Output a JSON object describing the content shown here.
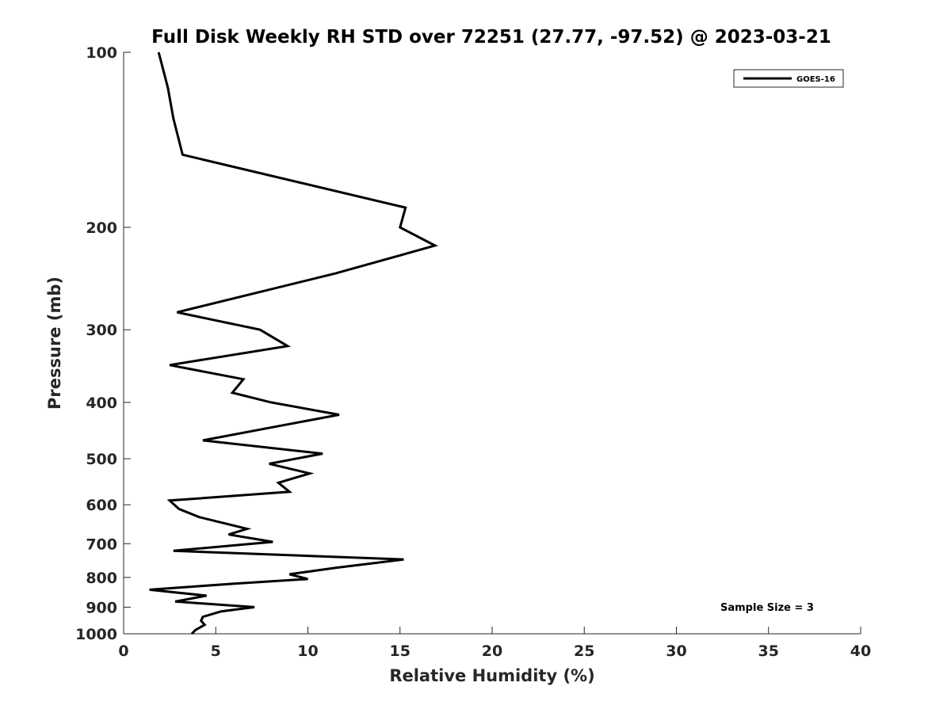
{
  "chart_data": {
    "type": "line",
    "title": "Full Disk Weekly RH STD over 72251 (27.77, -97.52) @ 2023-03-21",
    "xlabel": "Relative Humidity (%)",
    "ylabel": "Pressure (mb)",
    "xlim": [
      0,
      40
    ],
    "ylim": [
      100,
      1000
    ],
    "yscale": "log",
    "y_reversed": true,
    "x_ticks": [
      "0",
      "5",
      "10",
      "15",
      "20",
      "25",
      "30",
      "35",
      "40"
    ],
    "y_ticks": [
      "100",
      "200",
      "300",
      "400",
      "500",
      "600",
      "700",
      "800",
      "900",
      "1000"
    ],
    "grid": false,
    "legend_position": "top-right",
    "annotation": "Sample Size = 3",
    "series": [
      {
        "name": "GOES-16",
        "color": "#000000",
        "x": [
          1.9,
          2.4,
          2.7,
          3.2,
          15.3,
          15.0,
          16.9,
          11.5,
          2.9,
          7.4,
          8.9,
          2.5,
          6.5,
          5.9,
          8.0,
          11.7,
          8.3,
          4.3,
          10.8,
          7.9,
          10.1,
          8.4,
          9.0,
          2.5,
          3.0,
          4.1,
          6.7,
          5.7,
          8.1,
          2.7,
          15.2,
          11.5,
          9.0,
          10.0,
          6.0,
          1.4,
          4.5,
          2.8,
          7.1,
          5.3,
          4.3,
          4.2,
          4.4,
          3.9,
          3.7
        ],
        "y": [
          100,
          115,
          130,
          150,
          185,
          200,
          215,
          240,
          280,
          300,
          320,
          345,
          365,
          385,
          400,
          420,
          440,
          465,
          490,
          510,
          530,
          550,
          570,
          590,
          610,
          630,
          660,
          675,
          695,
          720,
          745,
          770,
          790,
          805,
          820,
          840,
          860,
          880,
          900,
          915,
          935,
          950,
          965,
          985,
          1000
        ]
      }
    ]
  }
}
